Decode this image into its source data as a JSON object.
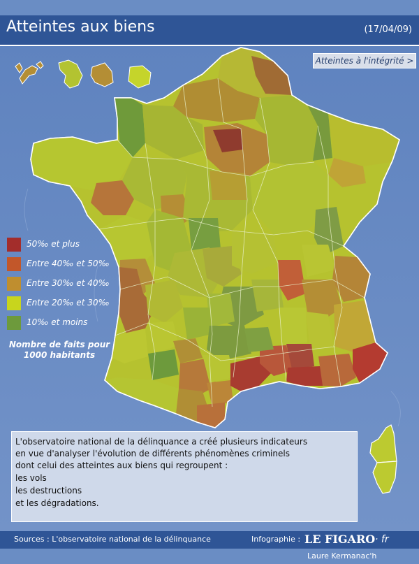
{
  "header": {
    "title": "Atteintes aux biens",
    "date": "(17/04/09)"
  },
  "nav": {
    "label": "Atteintes à l'intégrité >"
  },
  "legend": {
    "items": [
      {
        "label": "50‰ et plus",
        "color": "#a32d2b"
      },
      {
        "label": "Entre 40‰ et 50‰",
        "color": "#c2572a"
      },
      {
        "label": "Entre 30‰ et 40‰",
        "color": "#bf8e2f"
      },
      {
        "label": "Entre 20‰ et 30‰",
        "color": "#c8d51d"
      },
      {
        "label": "10‰ et moins",
        "color": "#6d9a3c"
      }
    ],
    "note": "Nombre de faits pour 1000 habitants"
  },
  "info": {
    "lines": [
      "L'observatoire national de la délinquance a créé plusieurs indicateurs",
      "en vue d'analyser l'évolution de différents phénomènes criminels",
      "dont celui des atteintes aux biens qui regroupent :",
      "les vols",
      "les destructions",
      "et les dégradations."
    ]
  },
  "footer": {
    "sources": "Sources : L'observatoire national de la délinquance",
    "infographie_label": "Infographie :",
    "logo": "LE FIGARO",
    "logo_suffix": "· fr",
    "author": "Laure Kermanac'h"
  },
  "colors": {
    "background": "#6a8dc4",
    "header": "#2f5596",
    "sea_light": "#7b9bcc"
  }
}
